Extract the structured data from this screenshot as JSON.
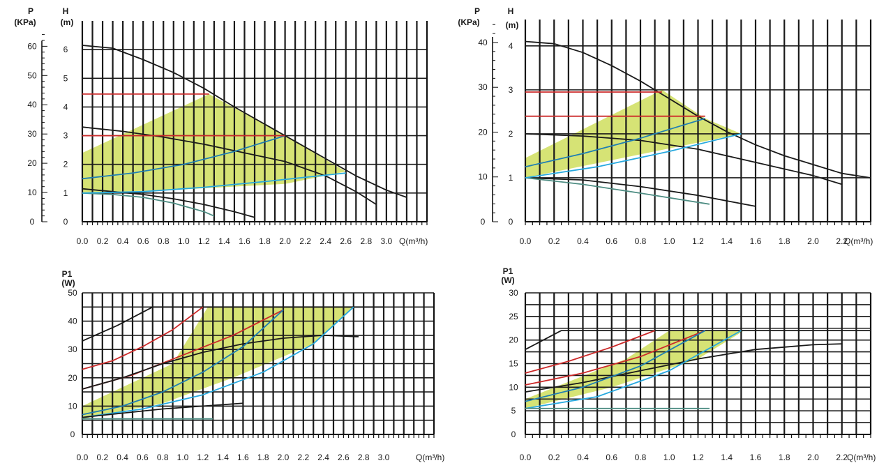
{
  "chart_data": [
    {
      "type": "line",
      "left_axis": {
        "title": "P",
        "unit": "(KPa)",
        "ticks": [
          0,
          10,
          20,
          30,
          40,
          50,
          60
        ]
      },
      "right_axis": {
        "title": "H",
        "unit": "(m)",
        "ticks": [
          0,
          1,
          2,
          3,
          4,
          5,
          6
        ],
        "ylim": [
          0,
          7
        ]
      },
      "x_axis": {
        "label": "Q(m³/h)",
        "ticks": [
          "0.0",
          "0.2",
          "0.4",
          "0.6",
          "0.8",
          "1.0",
          "1.2",
          "1.4",
          "1.6",
          "1.8",
          "2.0",
          "2.2",
          "2.4",
          "2.6",
          "2.8",
          "3.0"
        ],
        "xlim": [
          0,
          3.4
        ]
      },
      "grid": true,
      "shaded_region": {
        "color": "#d6e375",
        "points": [
          [
            0,
            1.2
          ],
          [
            0,
            2.4
          ],
          [
            1.25,
            4.45
          ],
          [
            2.0,
            3.0
          ],
          [
            2.6,
            1.75
          ],
          [
            2.0,
            1.32
          ],
          [
            1.0,
            1.13
          ],
          [
            0,
            1.0
          ]
        ]
      },
      "series": [
        {
          "color": "#1a1a1a",
          "x": [
            0,
            0.3,
            0.6,
            0.9,
            1.2,
            1.5,
            1.8,
            2.1,
            2.4,
            2.7,
            3.0,
            3.2
          ],
          "y": [
            6.15,
            6.05,
            5.65,
            5.2,
            4.65,
            4.0,
            3.4,
            2.8,
            2.2,
            1.6,
            1.1,
            0.85
          ]
        },
        {
          "color": "#1a1a1a",
          "x": [
            0,
            0.4,
            0.8,
            1.2,
            1.6,
            2.0,
            2.4,
            2.7,
            2.9
          ],
          "y": [
            3.3,
            3.15,
            2.95,
            2.7,
            2.4,
            2.1,
            1.6,
            1.05,
            0.6
          ]
        },
        {
          "color": "#1a1a1a",
          "x": [
            0,
            0.3,
            0.6,
            0.9,
            1.2,
            1.5,
            1.7
          ],
          "y": [
            1.15,
            1.05,
            0.95,
            0.8,
            0.6,
            0.35,
            0.15
          ]
        },
        {
          "color": "#4e8d83",
          "x": [
            0,
            0.3,
            0.6,
            0.9,
            1.2,
            1.3
          ],
          "y": [
            1.0,
            0.95,
            0.85,
            0.65,
            0.35,
            0.2
          ]
        },
        {
          "color": "#1f7fb3",
          "x": [
            0,
            0.5,
            1.0,
            1.5,
            2.0
          ],
          "y": [
            1.5,
            1.7,
            2.0,
            2.45,
            3.0
          ]
        },
        {
          "color": "#28a9df",
          "x": [
            0,
            0.6,
            1.2,
            1.8,
            2.6
          ],
          "y": [
            1.0,
            1.05,
            1.2,
            1.4,
            1.7
          ]
        },
        {
          "color": "#cc2a2a",
          "x": [
            0,
            1.25
          ],
          "y": [
            4.45,
            4.45
          ]
        },
        {
          "color": "#cc2a2a",
          "x": [
            0,
            2.0
          ],
          "y": [
            3.0,
            3.0
          ]
        }
      ]
    },
    {
      "type": "line",
      "left_axis": {
        "title": "P",
        "unit": "(KPa)",
        "ticks": [
          0,
          10,
          20,
          30,
          40
        ]
      },
      "right_axis": {
        "title": "H",
        "unit": "(m)",
        "ticks": [
          0,
          1,
          2,
          3,
          4
        ],
        "ylim": [
          0,
          4.6
        ]
      },
      "x_axis": {
        "label": "Q(m³/h)",
        "ticks": [
          "0.0",
          "0.2",
          "0.4",
          "0.6",
          "0.8",
          "1.0",
          "1.2",
          "1.4",
          "1.6",
          "1.8",
          "2.0",
          "2.2"
        ],
        "xlim": [
          0,
          2.4
        ]
      },
      "grid": true,
      "shaded_region": {
        "color": "#d6e375",
        "points": [
          [
            0,
            1.05
          ],
          [
            0,
            1.45
          ],
          [
            0.95,
            3.0
          ],
          [
            1.25,
            2.35
          ],
          [
            1.5,
            2.0
          ],
          [
            0.6,
            1.4
          ],
          [
            0,
            1.0
          ]
        ]
      },
      "series": [
        {
          "color": "#1a1a1a",
          "x": [
            0,
            0.2,
            0.4,
            0.6,
            0.8,
            1.0,
            1.2,
            1.4,
            1.6,
            1.8,
            2.0,
            2.2,
            2.4
          ],
          "y": [
            4.1,
            4.05,
            3.85,
            3.55,
            3.2,
            2.8,
            2.4,
            2.05,
            1.75,
            1.5,
            1.3,
            1.1,
            1.0
          ]
        },
        {
          "color": "#1a1a1a",
          "x": [
            0,
            0.4,
            0.8,
            1.2,
            1.6,
            2.0,
            2.2
          ],
          "y": [
            2.0,
            1.95,
            1.85,
            1.65,
            1.35,
            1.05,
            0.85
          ]
        },
        {
          "color": "#1a1a1a",
          "x": [
            0,
            0.4,
            0.8,
            1.2,
            1.6
          ],
          "y": [
            1.0,
            0.95,
            0.8,
            0.6,
            0.35
          ]
        },
        {
          "color": "#4e8d83",
          "x": [
            0,
            0.4,
            0.8,
            1.28
          ],
          "y": [
            1.0,
            0.85,
            0.65,
            0.4
          ]
        },
        {
          "color": "#1f7fb3",
          "x": [
            0,
            0.4,
            0.8,
            1.25
          ],
          "y": [
            1.25,
            1.55,
            1.9,
            2.35
          ]
        },
        {
          "color": "#28a9df",
          "x": [
            0,
            0.5,
            1.0,
            1.5
          ],
          "y": [
            1.0,
            1.25,
            1.6,
            2.0
          ]
        },
        {
          "color": "#cc2a2a",
          "x": [
            0,
            0.95
          ],
          "y": [
            2.95,
            2.95
          ]
        },
        {
          "color": "#cc2a2a",
          "x": [
            0,
            1.25
          ],
          "y": [
            2.4,
            2.4
          ]
        }
      ]
    },
    {
      "type": "line",
      "left_axis": {
        "title": "P1",
        "unit": "(W)",
        "ticks": [
          0,
          10,
          20,
          30,
          40,
          50
        ],
        "ylim": [
          0,
          50
        ]
      },
      "x_axis": {
        "label": "Q(m³/h)",
        "ticks": [
          "0.0",
          "0.2",
          "0.4",
          "0.6",
          "0.8",
          "1.0",
          "1.2",
          "1.4",
          "1.6",
          "1.8",
          "2.0",
          "2.2",
          "2.4",
          "2.6",
          "2.8",
          "3.0"
        ],
        "xlim": [
          0,
          3.5
        ]
      },
      "grid": true,
      "shaded_region": {
        "color": "#d6e375",
        "points": [
          [
            0,
            5.5
          ],
          [
            0,
            10
          ],
          [
            0.9,
            25
          ],
          [
            1.25,
            45
          ],
          [
            2.7,
            45
          ],
          [
            2.3,
            32
          ],
          [
            1.5,
            20
          ],
          [
            0.8,
            11
          ]
        ]
      },
      "series": [
        {
          "color": "#1a1a1a",
          "x": [
            0,
            0.35,
            0.7,
            3.0
          ],
          "y": [
            33,
            38.5,
            45,
            45
          ]
        },
        {
          "color": "#cc2a2a",
          "x": [
            0,
            0.3,
            0.6,
            0.9,
            1.2
          ],
          "y": [
            23,
            26,
            31,
            37,
            45
          ]
        },
        {
          "color": "#cc2a2a",
          "x": [
            0,
            0.5,
            1.0,
            1.5,
            2.0
          ],
          "y": [
            16,
            21,
            28,
            35,
            44
          ]
        },
        {
          "color": "#1a1a1a",
          "x": [
            0,
            0.4,
            0.8,
            1.2,
            1.6,
            2.0,
            2.4,
            2.75
          ],
          "y": [
            16,
            20,
            25,
            29,
            32,
            34,
            35,
            34.5
          ]
        },
        {
          "color": "#1f7fb3",
          "x": [
            0,
            0.4,
            0.8,
            1.2,
            1.6,
            2.0
          ],
          "y": [
            7,
            10,
            15,
            22,
            31,
            44
          ]
        },
        {
          "color": "#28a9df",
          "x": [
            0,
            0.6,
            1.2,
            1.8,
            2.3,
            2.7
          ],
          "y": [
            6,
            9,
            14,
            22,
            32,
            45
          ]
        },
        {
          "color": "#1a1a1a",
          "x": [
            0,
            0.4,
            0.8,
            1.2,
            1.6
          ],
          "y": [
            6,
            7.5,
            9,
            10,
            11
          ]
        },
        {
          "color": "#4e8d83",
          "x": [
            0,
            1.3
          ],
          "y": [
            5.5,
            5.5
          ]
        }
      ]
    },
    {
      "type": "line",
      "left_axis": {
        "title": "P1",
        "unit": "(W)",
        "ticks": [
          0,
          5,
          10,
          15,
          20,
          25,
          30
        ],
        "ylim": [
          0,
          30
        ]
      },
      "x_axis": {
        "label": "Q(m³/h)",
        "ticks": [
          "0.0",
          "0.2",
          "0.4",
          "0.6",
          "0.8",
          "1.0",
          "1.2",
          "1.4",
          "1.6",
          "1.8",
          "2.0",
          "2.2"
        ],
        "xlim": [
          0,
          2.4
        ]
      },
      "grid": true,
      "shaded_region": {
        "color": "#d6e375",
        "points": [
          [
            0,
            5.5
          ],
          [
            0,
            7.5
          ],
          [
            0.7,
            16
          ],
          [
            1.0,
            22
          ],
          [
            1.52,
            22
          ],
          [
            1.2,
            16
          ],
          [
            0.6,
            10
          ],
          [
            0,
            5.5
          ]
        ]
      },
      "series": [
        {
          "color": "#1a1a1a",
          "x": [
            0,
            0.25,
            2.4
          ],
          "y": [
            18,
            22,
            22
          ]
        },
        {
          "color": "#cc2a2a",
          "x": [
            0,
            0.3,
            0.6,
            0.9
          ],
          "y": [
            13,
            15.5,
            18.5,
            22
          ]
        },
        {
          "color": "#cc2a2a",
          "x": [
            0,
            0.4,
            0.8,
            1.25
          ],
          "y": [
            10.5,
            13,
            16.5,
            22
          ]
        },
        {
          "color": "#1a1a1a",
          "x": [
            0,
            0.4,
            0.8,
            1.2,
            1.6,
            2.0,
            2.2
          ],
          "y": [
            9,
            11,
            13.5,
            16,
            18,
            19,
            19.2
          ]
        },
        {
          "color": "#1f7fb3",
          "x": [
            0,
            0.4,
            0.8,
            1.25
          ],
          "y": [
            7,
            10,
            14.5,
            22
          ]
        },
        {
          "color": "#28a9df",
          "x": [
            0,
            0.5,
            1.0,
            1.5
          ],
          "y": [
            5.5,
            8,
            13.5,
            22
          ]
        },
        {
          "color": "#4e8d83",
          "x": [
            0,
            1.28
          ],
          "y": [
            5.5,
            5.5
          ]
        }
      ]
    }
  ]
}
